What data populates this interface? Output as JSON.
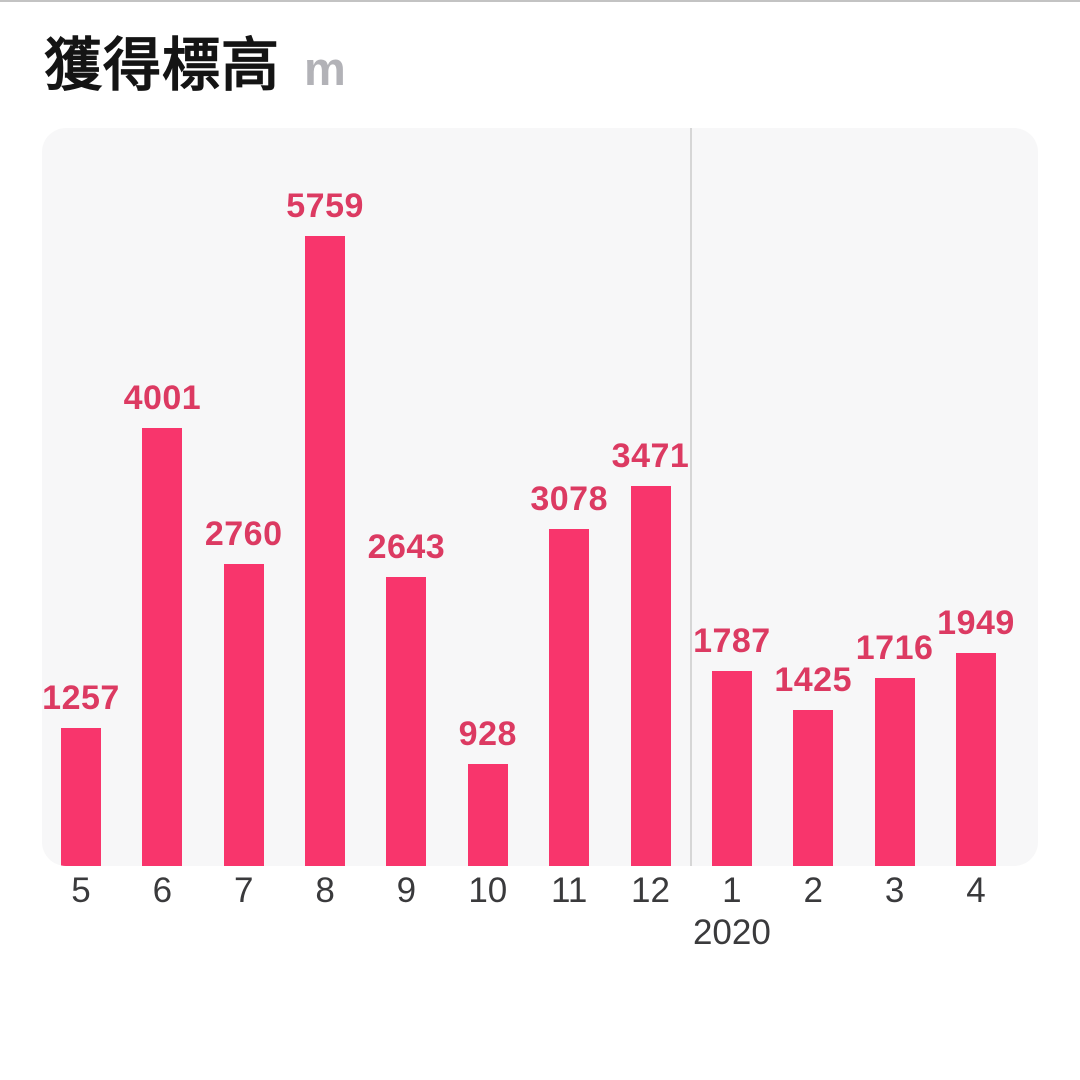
{
  "header": {
    "title": "獲得標高",
    "unit": "m"
  },
  "chart_data": {
    "type": "bar",
    "title": "獲得標高",
    "ylabel": "m",
    "categories": [
      "5",
      "6",
      "7",
      "8",
      "9",
      "10",
      "11",
      "12",
      "1",
      "2",
      "3",
      "4"
    ],
    "values": [
      1257,
      4001,
      2760,
      5759,
      2643,
      928,
      3078,
      3471,
      1787,
      1425,
      1716,
      1949
    ],
    "ylim": [
      0,
      5759
    ],
    "grid": false,
    "legend": "none",
    "year_boundary_after_index": 7,
    "year_label": "2020",
    "year_label_index": 8,
    "bar_color": "#f8356c",
    "value_label_color": "#dc3a62",
    "axis_label_color": "#3a3a3c",
    "panel_background": "#f7f7f8",
    "divider_color": "#d6d6d6"
  }
}
